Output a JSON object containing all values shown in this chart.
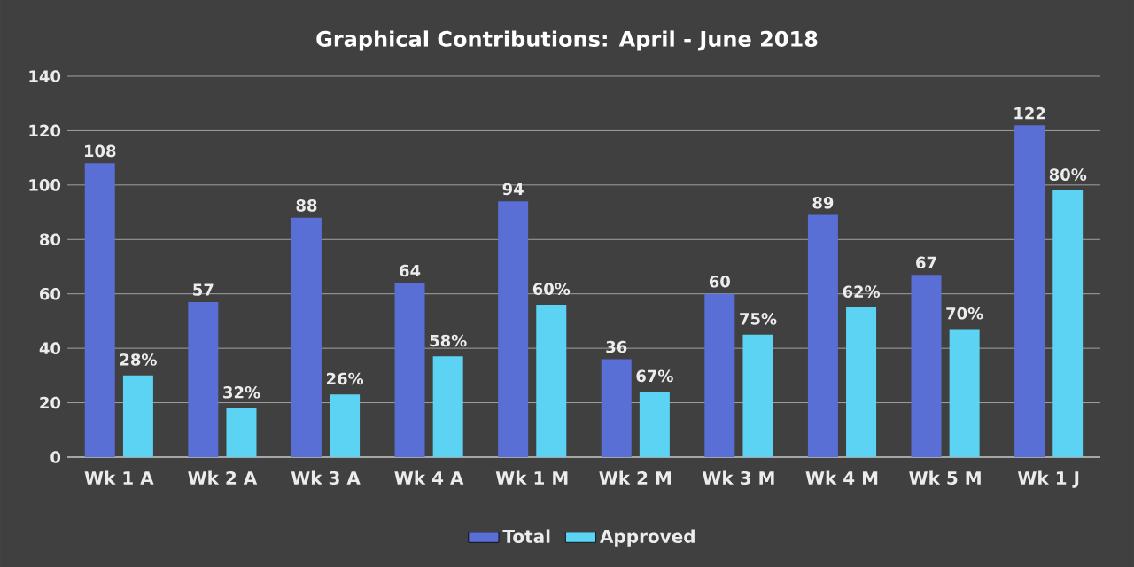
{
  "chart_data": {
    "type": "bar",
    "title": "Graphical Contributions:  April - June 2018",
    "categories": [
      "Wk 1 A",
      "Wk 2 A",
      "Wk 3 A",
      "Wk 4 A",
      "Wk 1 M",
      "Wk 2 M",
      "Wk 3 M",
      "Wk 4 M",
      "Wk 5 M",
      "Wk 1 J"
    ],
    "series": [
      {
        "name": "Total",
        "color": "#5a6fd6",
        "values": [
          108,
          57,
          88,
          64,
          94,
          36,
          60,
          89,
          67,
          122
        ],
        "value_labels": [
          "108",
          "57",
          "88",
          "64",
          "94",
          "36",
          "60",
          "89",
          "67",
          "122"
        ]
      },
      {
        "name": "Approved",
        "color": "#5dd3f3",
        "values": [
          30,
          18,
          23,
          37,
          56,
          24,
          45,
          55,
          47,
          98
        ]
      }
    ],
    "annotations": [
      {
        "text": "28%",
        "x": "Wk 1 A",
        "y": 30
      },
      {
        "text": "32%",
        "x": "Wk 2 A",
        "y": 18
      },
      {
        "text": "26%",
        "x": "Wk 3 A",
        "y": 23
      },
      {
        "text": "58%",
        "x": "Wk 4 A",
        "y": 37
      },
      {
        "text": "60%",
        "x": "Wk 1 M",
        "y": 56
      },
      {
        "text": "67%",
        "x": "Wk 2 M",
        "y": 24
      },
      {
        "text": "75%",
        "x": "Wk 3 M",
        "y": 45
      },
      {
        "text": "62%",
        "x": "Wk 4 M",
        "y": 55
      },
      {
        "text": "70%",
        "x": "Wk 5 M",
        "y": 47
      },
      {
        "text": "80%",
        "x": "Wk 1 J",
        "y": 98
      }
    ],
    "ylim": [
      0,
      140
    ],
    "yticks": [
      0,
      20,
      40,
      60,
      80,
      100,
      120,
      140
    ],
    "grid": "y",
    "legend": "bottom"
  }
}
